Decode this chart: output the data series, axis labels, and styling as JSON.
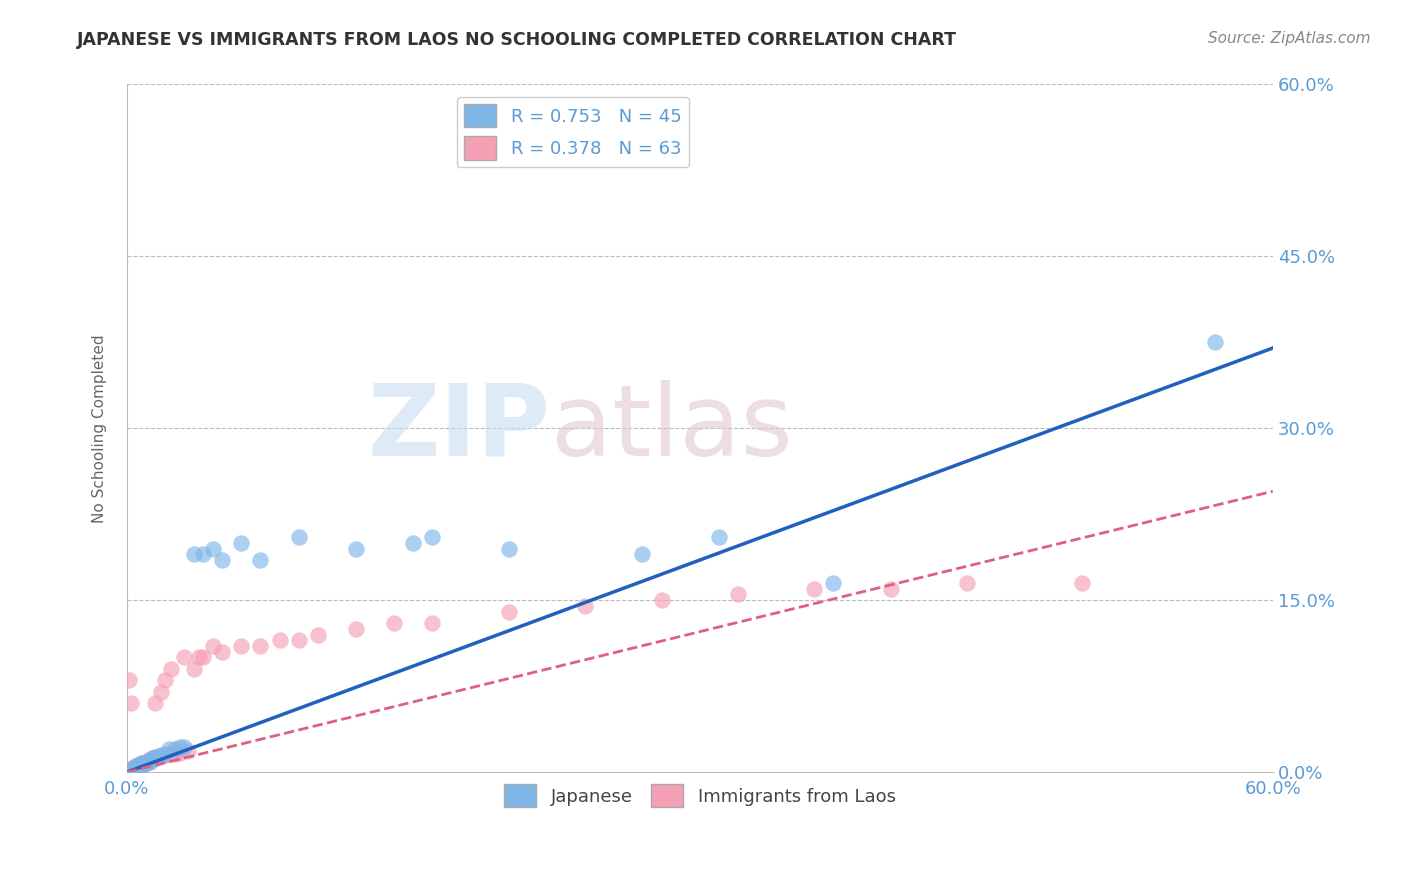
{
  "title": "JAPANESE VS IMMIGRANTS FROM LAOS NO SCHOOLING COMPLETED CORRELATION CHART",
  "source": "Source: ZipAtlas.com",
  "ylabel": "No Schooling Completed",
  "xlim": [
    0.0,
    0.6
  ],
  "ylim": [
    0.0,
    0.6
  ],
  "ytick_values": [
    0.0,
    0.15,
    0.3,
    0.45,
    0.6
  ],
  "hgrid_values": [
    0.15,
    0.3,
    0.45,
    0.6
  ],
  "legend_r1": "R = 0.753",
  "legend_n1": "N = 45",
  "legend_r2": "R = 0.378",
  "legend_n2": "N = 63",
  "watermark_zip": "ZIP",
  "watermark_atlas": "atlas",
  "blue_color": "#7EB6E8",
  "pink_color": "#F4A0B5",
  "blue_line_color": "#2060C0",
  "pink_line_color": "#E06080",
  "title_color": "#333333",
  "source_color": "#888888",
  "axis_label_color": "#666666",
  "tick_color": "#5B9BD5",
  "japanese_x": [
    0.001,
    0.002,
    0.002,
    0.003,
    0.003,
    0.004,
    0.004,
    0.005,
    0.005,
    0.006,
    0.006,
    0.007,
    0.007,
    0.008,
    0.008,
    0.009,
    0.01,
    0.01,
    0.011,
    0.012,
    0.013,
    0.014,
    0.015,
    0.016,
    0.018,
    0.02,
    0.022,
    0.025,
    0.028,
    0.03,
    0.035,
    0.04,
    0.045,
    0.05,
    0.06,
    0.07,
    0.09,
    0.12,
    0.15,
    0.16,
    0.2,
    0.27,
    0.31,
    0.37,
    0.57
  ],
  "japanese_y": [
    0.001,
    0.001,
    0.002,
    0.002,
    0.003,
    0.003,
    0.004,
    0.003,
    0.005,
    0.004,
    0.006,
    0.005,
    0.007,
    0.006,
    0.008,
    0.007,
    0.008,
    0.009,
    0.01,
    0.009,
    0.011,
    0.012,
    0.013,
    0.012,
    0.015,
    0.016,
    0.02,
    0.02,
    0.022,
    0.022,
    0.19,
    0.19,
    0.195,
    0.185,
    0.2,
    0.185,
    0.205,
    0.195,
    0.2,
    0.205,
    0.195,
    0.19,
    0.205,
    0.165,
    0.375
  ],
  "laos_x": [
    0.001,
    0.001,
    0.002,
    0.002,
    0.003,
    0.003,
    0.004,
    0.004,
    0.005,
    0.005,
    0.006,
    0.006,
    0.007,
    0.007,
    0.008,
    0.008,
    0.009,
    0.009,
    0.01,
    0.01,
    0.011,
    0.011,
    0.012,
    0.012,
    0.013,
    0.013,
    0.014,
    0.015,
    0.015,
    0.016,
    0.017,
    0.018,
    0.019,
    0.02,
    0.021,
    0.022,
    0.023,
    0.025,
    0.026,
    0.028,
    0.03,
    0.032,
    0.035,
    0.038,
    0.04,
    0.045,
    0.05,
    0.06,
    0.07,
    0.08,
    0.09,
    0.1,
    0.12,
    0.14,
    0.16,
    0.2,
    0.24,
    0.28,
    0.32,
    0.36,
    0.4,
    0.44,
    0.5
  ],
  "laos_y": [
    0.001,
    0.08,
    0.002,
    0.06,
    0.002,
    0.003,
    0.003,
    0.004,
    0.004,
    0.005,
    0.005,
    0.006,
    0.005,
    0.007,
    0.006,
    0.008,
    0.007,
    0.008,
    0.008,
    0.009,
    0.009,
    0.01,
    0.01,
    0.011,
    0.011,
    0.012,
    0.012,
    0.013,
    0.06,
    0.013,
    0.014,
    0.07,
    0.015,
    0.08,
    0.015,
    0.016,
    0.09,
    0.016,
    0.017,
    0.017,
    0.1,
    0.018,
    0.09,
    0.1,
    0.1,
    0.11,
    0.105,
    0.11,
    0.11,
    0.115,
    0.115,
    0.12,
    0.125,
    0.13,
    0.13,
    0.14,
    0.145,
    0.15,
    0.155,
    0.16,
    0.16,
    0.165,
    0.165
  ],
  "blue_line_x0": 0.0,
  "blue_line_y0": 0.0,
  "blue_line_x1": 0.6,
  "blue_line_y1": 0.37,
  "pink_line_x0": 0.0,
  "pink_line_y0": 0.0,
  "pink_line_x1": 0.6,
  "pink_line_y1": 0.245
}
